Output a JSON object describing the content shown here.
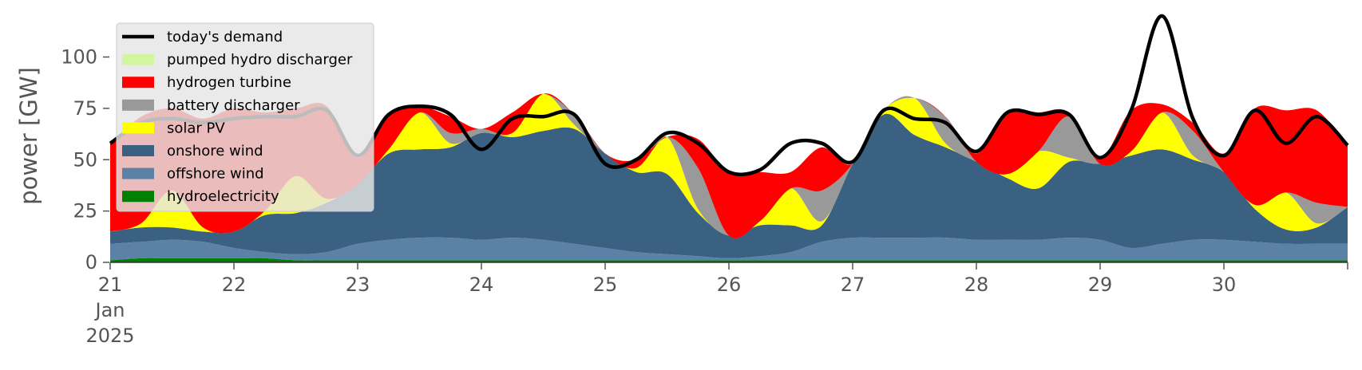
{
  "chart_data": {
    "type": "area",
    "xlabel": "",
    "ylabel": "power [GW]",
    "ylim": [
      0,
      120
    ],
    "yticks": [
      0,
      25,
      50,
      75,
      100
    ],
    "xlim": [
      21,
      31
    ],
    "xticks": [
      {
        "value": 21,
        "lines": [
          "21",
          "Jan",
          "2025"
        ]
      },
      {
        "value": 22,
        "lines": [
          "22"
        ]
      },
      {
        "value": 23,
        "lines": [
          "23"
        ]
      },
      {
        "value": 24,
        "lines": [
          "24"
        ]
      },
      {
        "value": 25,
        "lines": [
          "25"
        ]
      },
      {
        "value": 26,
        "lines": [
          "26"
        ]
      },
      {
        "value": 27,
        "lines": [
          "27"
        ]
      },
      {
        "value": 28,
        "lines": [
          "28"
        ]
      },
      {
        "value": 29,
        "lines": [
          "29"
        ]
      },
      {
        "value": 30,
        "lines": [
          "30"
        ]
      }
    ],
    "legend_position": "top-left",
    "grid": false,
    "x": [
      21.0,
      21.25,
      21.5,
      21.75,
      22.0,
      22.25,
      22.5,
      22.75,
      23.0,
      23.25,
      23.5,
      23.75,
      24.0,
      24.25,
      24.5,
      24.75,
      25.0,
      25.25,
      25.5,
      25.75,
      26.0,
      26.25,
      26.5,
      26.75,
      27.0,
      27.25,
      27.5,
      27.75,
      28.0,
      28.25,
      28.5,
      28.75,
      29.0,
      29.25,
      29.5,
      29.75,
      30.0,
      30.25,
      30.5,
      30.75,
      31.0
    ],
    "stacked_series": [
      {
        "name": "hydroelectricity",
        "color": "#008000",
        "values": [
          1,
          2,
          2,
          2,
          2,
          2,
          1,
          1,
          1,
          1,
          1,
          1,
          1,
          1,
          1,
          1,
          1,
          1,
          1,
          1,
          1,
          1,
          1,
          1,
          1,
          1,
          1,
          1,
          1,
          1,
          1,
          1,
          1,
          1,
          1,
          1,
          1,
          1,
          1,
          1,
          1
        ]
      },
      {
        "name": "offshore wind",
        "color": "#5b82a6",
        "values": [
          8,
          8,
          9,
          8,
          5,
          3,
          3,
          4,
          8,
          10,
          11,
          11,
          10,
          11,
          10,
          8,
          6,
          4,
          3,
          2,
          1,
          2,
          4,
          9,
          11,
          11,
          11,
          11,
          10,
          10,
          10,
          11,
          10,
          6,
          8,
          10,
          10,
          9,
          8,
          8,
          8
        ]
      },
      {
        "name": "onshore wind",
        "color": "#3b6182",
        "values": [
          6,
          7,
          6,
          5,
          8,
          18,
          20,
          24,
          29,
          42,
          43,
          44,
          52,
          49,
          53,
          56,
          46,
          39,
          39,
          21,
          11,
          15,
          13,
          8,
          36,
          60,
          50,
          44,
          38,
          30,
          25,
          37,
          37,
          45,
          46,
          39,
          33,
          16,
          7,
          8,
          18
        ]
      },
      {
        "name": "solar PV",
        "color": "#ffff00",
        "values": [
          0,
          2,
          18,
          2,
          0,
          2,
          18,
          2,
          0,
          2,
          18,
          2,
          0,
          2,
          18,
          2,
          0,
          2,
          18,
          2,
          0,
          2,
          18,
          2,
          0,
          2,
          18,
          2,
          0,
          2,
          18,
          2,
          0,
          2,
          18,
          2,
          0,
          2,
          18,
          2,
          0
        ]
      },
      {
        "name": "battery discharger",
        "color": "#999999",
        "values": [
          0,
          0,
          0,
          0,
          0,
          0,
          0,
          0,
          0,
          0,
          0,
          5,
          2,
          0,
          0,
          5,
          0,
          0,
          0,
          20,
          0,
          0,
          0,
          15,
          0,
          0,
          0,
          13,
          0,
          0,
          0,
          20,
          0,
          0,
          0,
          12,
          0,
          0,
          0,
          10,
          0
        ]
      },
      {
        "name": "hydrogen turbine",
        "color": "#ff0000",
        "values": [
          43,
          52,
          40,
          53,
          60,
          48,
          33,
          45,
          13,
          17,
          3,
          8,
          0,
          10,
          0,
          0,
          0,
          4,
          0,
          14,
          31,
          24,
          8,
          21,
          0,
          0,
          0,
          0,
          4,
          30,
          19,
          2,
          3,
          20,
          4,
          4,
          9,
          47,
          40,
          45,
          30
        ]
      },
      {
        "name": "pumped hydro discharger",
        "color": "#d4f5a0",
        "values": [
          0,
          0,
          0,
          0,
          0,
          0,
          0,
          0,
          0,
          0,
          0,
          0,
          0,
          0,
          0,
          0,
          0,
          0,
          0,
          0,
          0,
          0,
          0,
          0,
          0,
          0,
          0,
          0,
          0,
          0,
          0,
          0,
          0,
          0,
          0,
          0,
          0,
          0,
          0,
          0,
          0
        ]
      }
    ],
    "demand": {
      "name": "today's demand",
      "color": "#000000",
      "values": [
        58,
        68,
        70,
        68,
        70,
        71,
        71,
        74,
        52,
        72,
        76,
        72,
        55,
        70,
        71,
        72,
        48,
        50,
        63,
        58,
        44,
        45,
        58,
        58,
        49,
        74,
        70,
        68,
        54,
        73,
        72,
        72,
        51,
        74,
        120,
        70,
        52,
        74,
        58,
        71,
        57
      ]
    },
    "legend": [
      {
        "label": "today's demand",
        "kind": "line",
        "color": "#000000"
      },
      {
        "label": "pumped hydro discharger",
        "kind": "patch",
        "color": "#d4f5a0"
      },
      {
        "label": "hydrogen turbine",
        "kind": "patch",
        "color": "#ff0000"
      },
      {
        "label": "battery discharger",
        "kind": "patch",
        "color": "#999999"
      },
      {
        "label": "solar PV",
        "kind": "patch",
        "color": "#ffff00"
      },
      {
        "label": "onshore wind",
        "kind": "patch",
        "color": "#3b6182"
      },
      {
        "label": "offshore wind",
        "kind": "patch",
        "color": "#5b82a6"
      },
      {
        "label": "hydroelectricity",
        "kind": "patch",
        "color": "#008000"
      }
    ]
  }
}
